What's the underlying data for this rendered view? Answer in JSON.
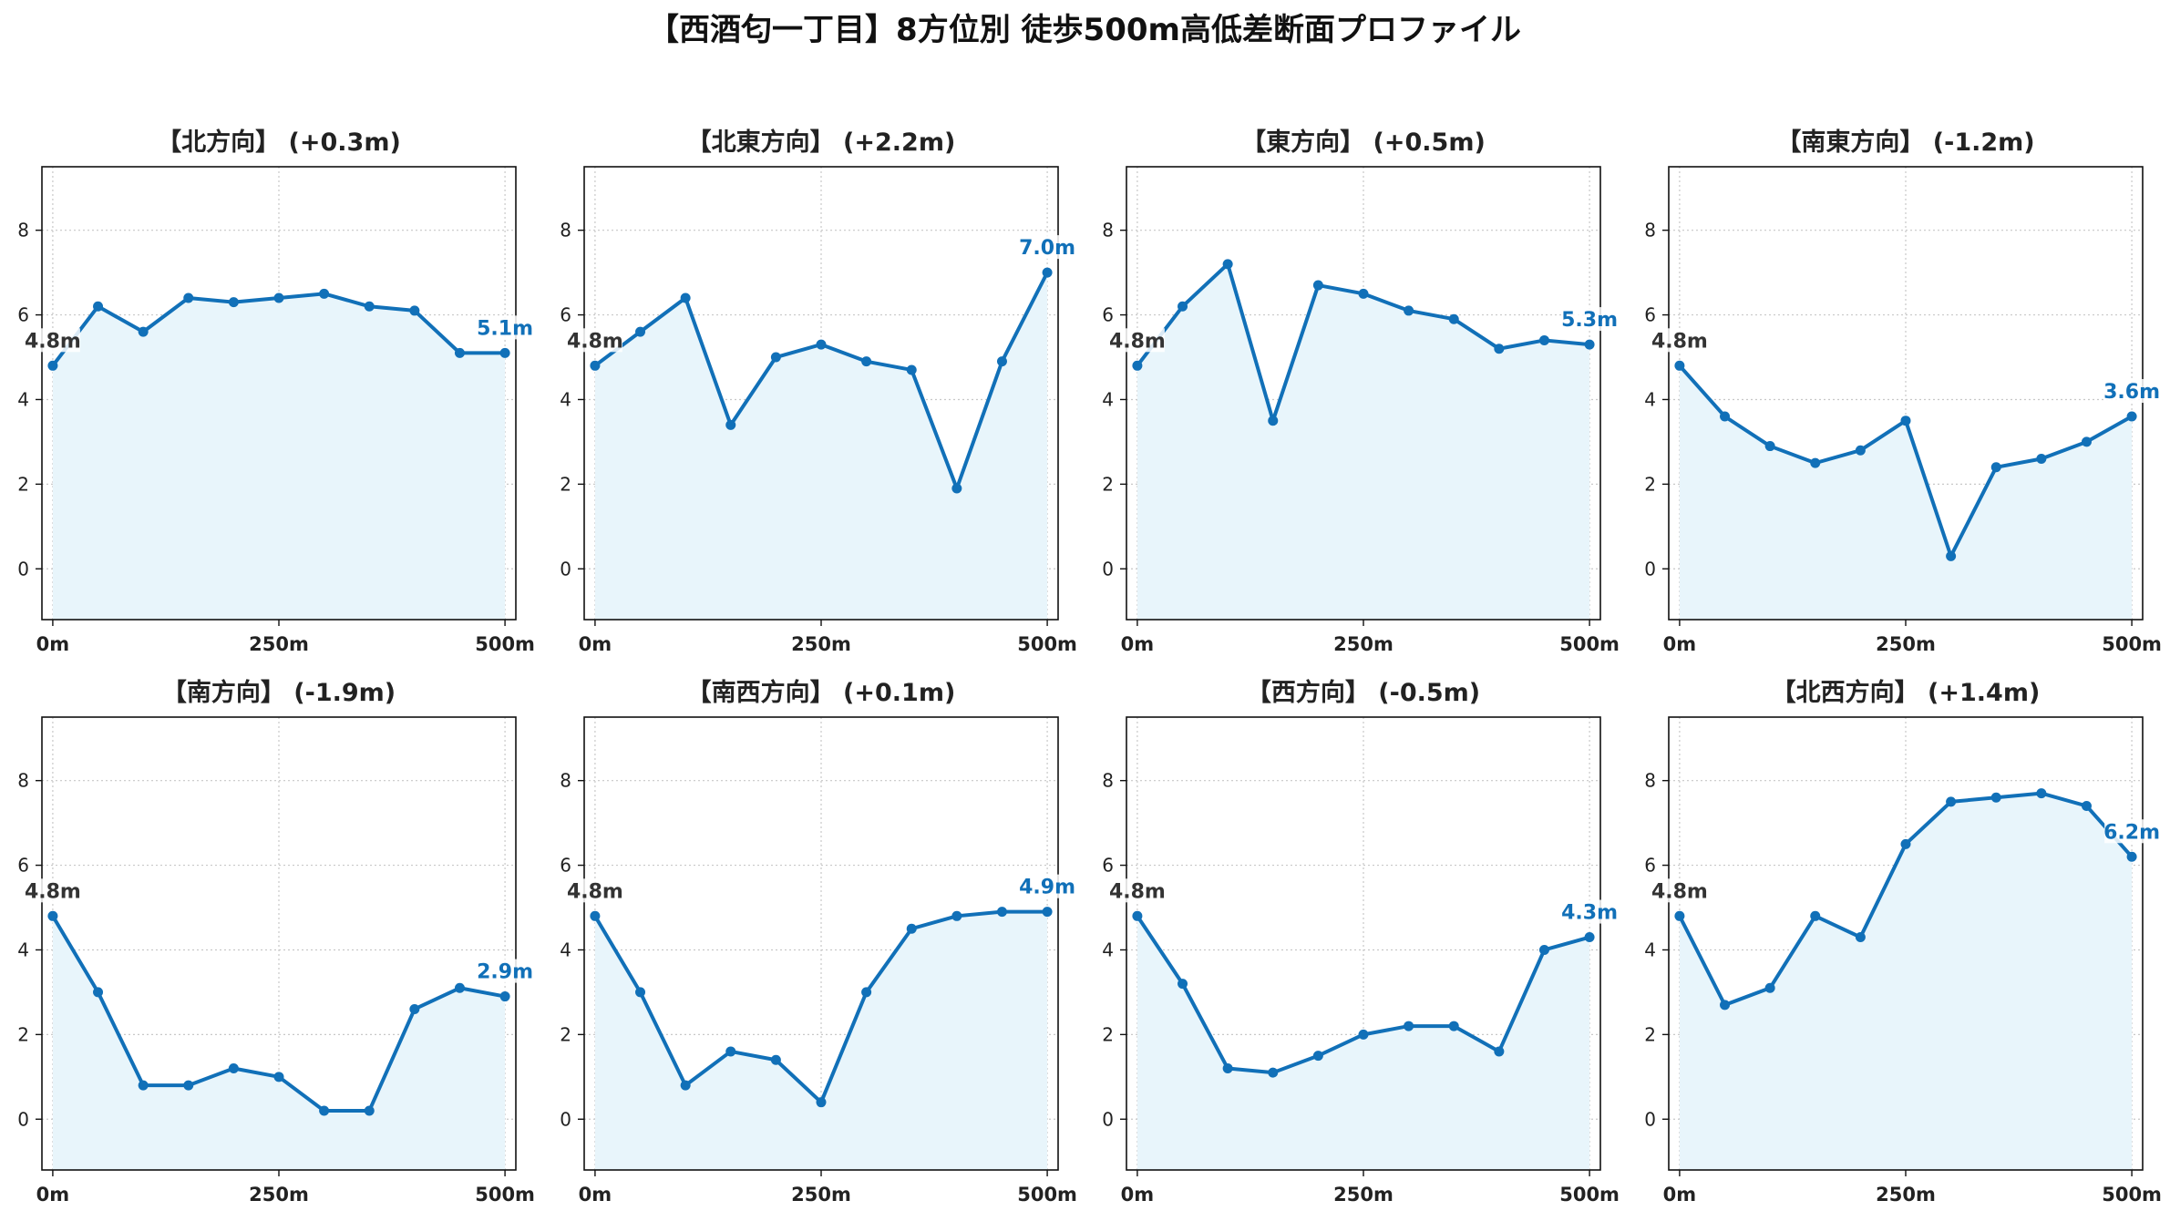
{
  "title": "【西酒匂一丁目】8方位別 徒歩500m高低差断面プロファイル",
  "colors": {
    "line": "#1170b8",
    "fill": "#e8f5fb",
    "grid": "#c8c8c8",
    "axis": "#111111",
    "start_label": "#333333",
    "end_label": "#1170b8"
  },
  "chart_data": [
    {
      "type": "area",
      "title": "【北方向】 (+0.3m)",
      "x": [
        0,
        50,
        100,
        150,
        200,
        250,
        300,
        350,
        400,
        450,
        500
      ],
      "y": [
        4.8,
        6.2,
        5.6,
        6.4,
        6.3,
        6.4,
        6.5,
        6.2,
        6.1,
        5.1,
        5.1
      ],
      "start_label": "4.8m",
      "end_label": "5.1m",
      "xticks": [
        "0m",
        "250m",
        "500m"
      ],
      "yticks": [
        0,
        2,
        4,
        6,
        8
      ],
      "ylim": [
        -1.2,
        9.5
      ],
      "xlim": [
        -12,
        512
      ],
      "grid": true
    },
    {
      "type": "area",
      "title": "【北東方向】 (+2.2m)",
      "x": [
        0,
        50,
        100,
        150,
        200,
        250,
        300,
        350,
        400,
        450,
        500
      ],
      "y": [
        4.8,
        5.6,
        6.4,
        3.4,
        5.0,
        5.3,
        4.9,
        4.7,
        1.9,
        4.9,
        7.0
      ],
      "start_label": "4.8m",
      "end_label": "7.0m",
      "xticks": [
        "0m",
        "250m",
        "500m"
      ],
      "yticks": [
        0,
        2,
        4,
        6,
        8
      ],
      "ylim": [
        -1.2,
        9.5
      ],
      "xlim": [
        -12,
        512
      ],
      "grid": true
    },
    {
      "type": "area",
      "title": "【東方向】 (+0.5m)",
      "x": [
        0,
        50,
        100,
        150,
        200,
        250,
        300,
        350,
        400,
        450,
        500
      ],
      "y": [
        4.8,
        6.2,
        7.2,
        3.5,
        6.7,
        6.5,
        6.1,
        5.9,
        5.2,
        5.4,
        5.3
      ],
      "start_label": "4.8m",
      "end_label": "5.3m",
      "xticks": [
        "0m",
        "250m",
        "500m"
      ],
      "yticks": [
        0,
        2,
        4,
        6,
        8
      ],
      "ylim": [
        -1.2,
        9.5
      ],
      "xlim": [
        -12,
        512
      ],
      "grid": true
    },
    {
      "type": "area",
      "title": "【南東方向】 (-1.2m)",
      "x": [
        0,
        50,
        100,
        150,
        200,
        250,
        300,
        350,
        400,
        450,
        500
      ],
      "y": [
        4.8,
        3.6,
        2.9,
        2.5,
        2.8,
        3.5,
        0.3,
        2.4,
        2.6,
        3.0,
        3.6
      ],
      "start_label": "4.8m",
      "end_label": "3.6m",
      "xticks": [
        "0m",
        "250m",
        "500m"
      ],
      "yticks": [
        0,
        2,
        4,
        6,
        8
      ],
      "ylim": [
        -1.2,
        9.5
      ],
      "xlim": [
        -12,
        512
      ],
      "grid": true
    },
    {
      "type": "area",
      "title": "【南方向】 (-1.9m)",
      "x": [
        0,
        50,
        100,
        150,
        200,
        250,
        300,
        350,
        400,
        450,
        500
      ],
      "y": [
        4.8,
        3.0,
        0.8,
        0.8,
        1.2,
        1.0,
        0.2,
        0.2,
        2.6,
        3.1,
        2.9
      ],
      "start_label": "4.8m",
      "end_label": "2.9m",
      "xticks": [
        "0m",
        "250m",
        "500m"
      ],
      "yticks": [
        0,
        2,
        4,
        6,
        8
      ],
      "ylim": [
        -1.2,
        9.5
      ],
      "xlim": [
        -12,
        512
      ],
      "grid": true
    },
    {
      "type": "area",
      "title": "【南西方向】 (+0.1m)",
      "x": [
        0,
        50,
        100,
        150,
        200,
        250,
        300,
        350,
        400,
        450,
        500
      ],
      "y": [
        4.8,
        3.0,
        0.8,
        1.6,
        1.4,
        0.4,
        3.0,
        4.5,
        4.8,
        4.9,
        4.9
      ],
      "start_label": "4.8m",
      "end_label": "4.9m",
      "xticks": [
        "0m",
        "250m",
        "500m"
      ],
      "yticks": [
        0,
        2,
        4,
        6,
        8
      ],
      "ylim": [
        -1.2,
        9.5
      ],
      "xlim": [
        -12,
        512
      ],
      "grid": true
    },
    {
      "type": "area",
      "title": "【西方向】 (-0.5m)",
      "x": [
        0,
        50,
        100,
        150,
        200,
        250,
        300,
        350,
        400,
        450,
        500
      ],
      "y": [
        4.8,
        3.2,
        1.2,
        1.1,
        1.5,
        2.0,
        2.2,
        2.2,
        1.6,
        4.0,
        4.3
      ],
      "start_label": "4.8m",
      "end_label": "4.3m",
      "xticks": [
        "0m",
        "250m",
        "500m"
      ],
      "yticks": [
        0,
        2,
        4,
        6,
        8
      ],
      "ylim": [
        -1.2,
        9.5
      ],
      "xlim": [
        -12,
        512
      ],
      "grid": true
    },
    {
      "type": "area",
      "title": "【北西方向】 (+1.4m)",
      "x": [
        0,
        50,
        100,
        150,
        200,
        250,
        300,
        350,
        400,
        450,
        500
      ],
      "y": [
        4.8,
        2.7,
        3.1,
        4.8,
        4.3,
        6.5,
        7.5,
        7.6,
        7.7,
        7.4,
        6.2
      ],
      "start_label": "4.8m",
      "end_label": "6.2m",
      "xticks": [
        "0m",
        "250m",
        "500m"
      ],
      "yticks": [
        0,
        2,
        4,
        6,
        8
      ],
      "ylim": [
        -1.2,
        9.5
      ],
      "xlim": [
        -12,
        512
      ],
      "grid": true
    }
  ]
}
